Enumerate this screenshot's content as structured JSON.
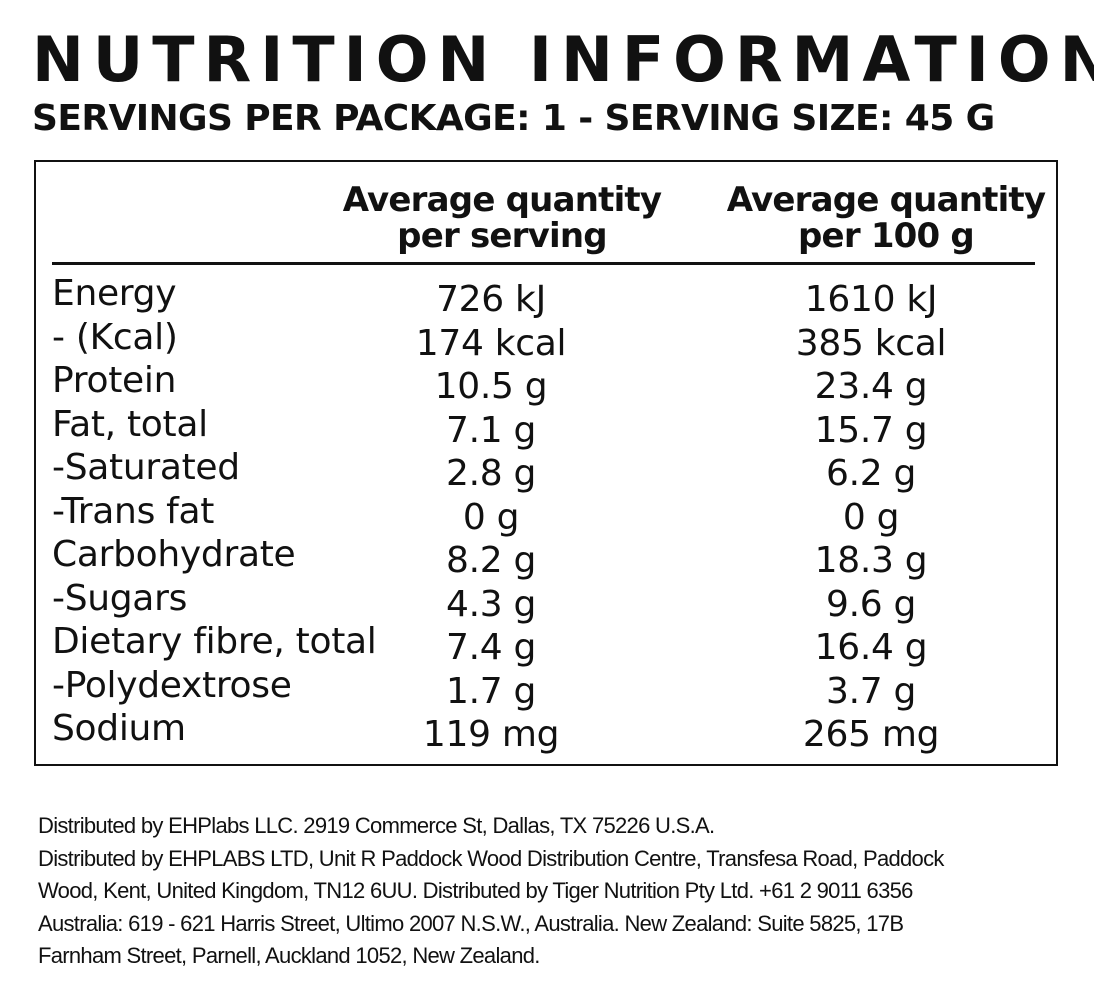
{
  "header": {
    "title": "NUTRITION INFORMATION",
    "subtitle": "SERVINGS PER PACKAGE: 1 - SERVING SIZE: 45 G"
  },
  "table": {
    "columns": [
      {
        "line1": "Average quantity",
        "line2": "per serving"
      },
      {
        "line1": "Average quantity",
        "line2": "per 100 g"
      }
    ],
    "rows": [
      {
        "name": "Energy",
        "per_serving": "726 kJ",
        "per_100g": "1610 kJ"
      },
      {
        "name": "- (Kcal)",
        "per_serving": "174 kcal",
        "per_100g": "385 kcal"
      },
      {
        "name": "Protein",
        "per_serving": "10.5 g",
        "per_100g": "23.4 g"
      },
      {
        "name": "Fat, total",
        "per_serving": "7.1 g",
        "per_100g": "15.7 g"
      },
      {
        "name": "-Saturated",
        "per_serving": "2.8 g",
        "per_100g": "6.2 g"
      },
      {
        "name": "-Trans fat",
        "per_serving": "0 g",
        "per_100g": "0 g"
      },
      {
        "name": "Carbohydrate",
        "per_serving": "8.2 g",
        "per_100g": "18.3 g"
      },
      {
        "name": "-Sugars",
        "per_serving": "4.3 g",
        "per_100g": "9.6 g"
      },
      {
        "name": "Dietary fibre, total",
        "per_serving": "7.4 g",
        "per_100g": "16.4 g"
      },
      {
        "name": "-Polydextrose",
        "per_serving": "1.7 g",
        "per_100g": "3.7 g"
      },
      {
        "name": "Sodium",
        "per_serving": "119 mg",
        "per_100g": "265 mg"
      }
    ]
  },
  "footer": {
    "lines": [
      "Distributed by EHPlabs LLC. 2919 Commerce St, Dallas, TX 75226 U.S.A.",
      "Distributed by EHPLABS LTD, Unit R Paddock Wood Distribution Centre, Transfesa Road, Paddock",
      "Wood, Kent, United Kingdom, TN12 6UU. Distributed by Tiger Nutrition Pty Ltd. +61 2 9011 6356",
      "Australia: 619 - 621 Harris Street, Ultimo 2007 N.S.W., Australia. New Zealand: Suite 5825, 17B",
      "Farnham Street, Parnell, Auckland 1052, New Zealand."
    ]
  }
}
